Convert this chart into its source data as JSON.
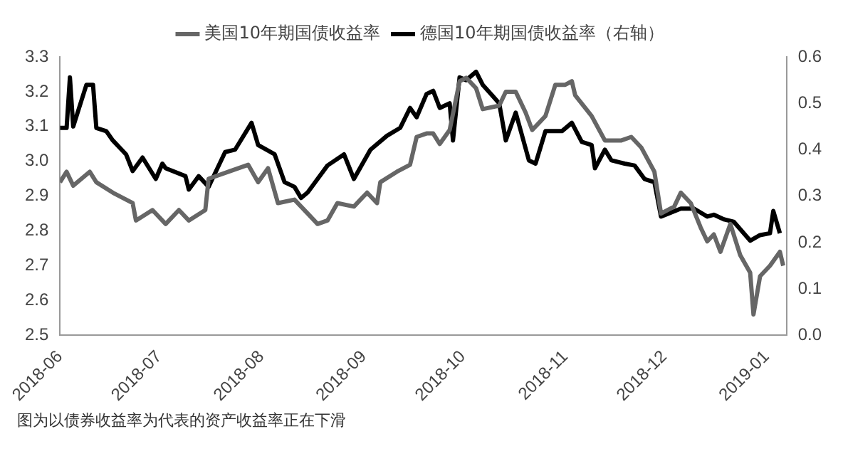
{
  "chart_data": {
    "type": "line",
    "legend": "top",
    "grid": false,
    "marker": "none",
    "line_style": "solid",
    "xlim": [
      "2018-06-01",
      "2019-01-07"
    ],
    "xticks": [
      {
        "value": "2018-06-01",
        "label": "2018-06"
      },
      {
        "value": "2018-07-01",
        "label": "2018-07"
      },
      {
        "value": "2018-08-01",
        "label": "2018-08"
      },
      {
        "value": "2018-09-01",
        "label": "2018-09"
      },
      {
        "value": "2018-10-01",
        "label": "2018-10"
      },
      {
        "value": "2018-11-01",
        "label": "2018-11"
      },
      {
        "value": "2018-12-01",
        "label": "2018-12"
      },
      {
        "value": "2019-01-01",
        "label": "2019-01"
      }
    ],
    "ylim": [
      2.5,
      3.3
    ],
    "yticks": [
      2.5,
      2.6,
      2.7,
      2.8,
      2.9,
      {
        "value": 3,
        "label": "3.0"
      },
      3.1,
      3.2,
      3.3
    ],
    "y2lim": [
      0,
      0.6
    ],
    "y2ticks": [
      {
        "value": 0,
        "label": "0.0"
      },
      0.1,
      0.2,
      0.3,
      0.4,
      0.5,
      0.6
    ],
    "series": [
      {
        "name": "美国10年期国债收益率",
        "color": "#666666",
        "x": [
          "2018-06-01",
          "2018-06-03",
          "2018-06-05",
          "2018-06-10",
          "2018-06-12",
          "2018-06-17",
          "2018-06-23",
          "2018-06-24",
          "2018-06-29",
          "2018-07-03",
          "2018-07-07",
          "2018-07-10",
          "2018-07-15",
          "2018-07-16",
          "2018-07-22",
          "2018-07-28",
          "2018-07-31",
          "2018-08-03",
          "2018-08-06",
          "2018-08-11",
          "2018-08-15",
          "2018-08-18",
          "2018-08-21",
          "2018-08-24",
          "2018-08-29",
          "2018-09-02",
          "2018-09-05",
          "2018-09-06",
          "2018-09-11",
          "2018-09-15",
          "2018-09-17",
          "2018-09-20",
          "2018-09-22",
          "2018-09-24",
          "2018-09-27",
          "2018-09-30",
          "2018-10-02",
          "2018-10-05",
          "2018-10-07",
          "2018-10-12",
          "2018-10-14",
          "2018-10-17",
          "2018-10-20",
          "2018-10-22",
          "2018-10-26",
          "2018-10-29",
          "2018-11-01",
          "2018-11-03",
          "2018-11-04",
          "2018-11-09",
          "2018-11-13",
          "2018-11-18",
          "2018-11-21",
          "2018-11-24",
          "2018-11-28",
          "2018-11-30",
          "2018-12-04",
          "2018-12-06",
          "2018-12-09",
          "2018-12-12",
          "2018-12-14",
          "2018-12-16",
          "2018-12-18",
          "2018-12-21",
          "2018-12-24",
          "2018-12-27",
          "2018-12-28",
          "2018-12-30",
          "2019-01-02",
          "2019-01-05",
          "2019-01-06"
        ],
        "values": [
          2.94,
          2.97,
          2.93,
          2.97,
          2.94,
          2.91,
          2.88,
          2.83,
          2.86,
          2.82,
          2.86,
          2.83,
          2.86,
          2.95,
          2.97,
          2.99,
          2.94,
          2.98,
          2.88,
          2.89,
          2.85,
          2.82,
          2.83,
          2.88,
          2.87,
          2.91,
          2.88,
          2.94,
          2.97,
          2.99,
          3.07,
          3.08,
          3.08,
          3.05,
          3.09,
          3.23,
          3.24,
          3.21,
          3.15,
          3.16,
          3.2,
          3.2,
          3.14,
          3.09,
          3.13,
          3.22,
          3.22,
          3.23,
          3.19,
          3.13,
          3.06,
          3.06,
          3.07,
          3.04,
          2.97,
          2.85,
          2.87,
          2.91,
          2.88,
          2.81,
          2.77,
          2.79,
          2.74,
          2.82,
          2.73,
          2.68,
          2.56,
          2.67,
          2.7,
          2.74,
          2.7
        ]
      },
      {
        "name": "德国10年期国债收益率（右轴）",
        "color": "#000000",
        "axis": "y2",
        "x": [
          "2018-06-01",
          "2018-06-03",
          "2018-06-04",
          "2018-06-05",
          "2018-06-09",
          "2018-06-11",
          "2018-06-12",
          "2018-06-15",
          "2018-06-17",
          "2018-06-21",
          "2018-06-23",
          "2018-06-26",
          "2018-06-30",
          "2018-07-02",
          "2018-07-03",
          "2018-07-09",
          "2018-07-10",
          "2018-07-13",
          "2018-07-16",
          "2018-07-21",
          "2018-07-24",
          "2018-07-29",
          "2018-07-31",
          "2018-08-05",
          "2018-08-08",
          "2018-08-11",
          "2018-08-13",
          "2018-08-15",
          "2018-08-21",
          "2018-08-26",
          "2018-08-29",
          "2018-09-03",
          "2018-09-08",
          "2018-09-12",
          "2018-09-15",
          "2018-09-17",
          "2018-09-20",
          "2018-09-22",
          "2018-09-24",
          "2018-09-27",
          "2018-09-28",
          "2018-09-30",
          "2018-10-02",
          "2018-10-05",
          "2018-10-07",
          "2018-10-10",
          "2018-10-12",
          "2018-10-14",
          "2018-10-17",
          "2018-10-21",
          "2018-10-23",
          "2018-10-26",
          "2018-10-31",
          "2018-11-03",
          "2018-11-06",
          "2018-11-09",
          "2018-11-10",
          "2018-11-13",
          "2018-11-15",
          "2018-11-19",
          "2018-11-22",
          "2018-11-25",
          "2018-11-28",
          "2018-11-30",
          "2018-12-06",
          "2018-12-10",
          "2018-12-14",
          "2018-12-16",
          "2018-12-19",
          "2018-12-22",
          "2018-12-27",
          "2018-12-30",
          "2019-01-02",
          "2019-01-03",
          "2019-01-05"
        ],
        "values": [
          0.447,
          0.447,
          0.556,
          0.45,
          0.54,
          0.54,
          0.447,
          0.44,
          0.42,
          0.39,
          0.354,
          0.383,
          0.337,
          0.37,
          0.36,
          0.343,
          0.314,
          0.343,
          0.32,
          0.395,
          0.4,
          0.458,
          0.41,
          0.39,
          0.33,
          0.32,
          0.296,
          0.308,
          0.366,
          0.39,
          0.337,
          0.4,
          0.43,
          0.447,
          0.49,
          0.47,
          0.52,
          0.527,
          0.49,
          0.5,
          0.42,
          0.556,
          0.55,
          0.568,
          0.54,
          0.516,
          0.5,
          0.42,
          0.48,
          0.377,
          0.37,
          0.44,
          0.44,
          0.458,
          0.417,
          0.41,
          0.36,
          0.4,
          0.377,
          0.37,
          0.366,
          0.337,
          0.33,
          0.256,
          0.273,
          0.273,
          0.256,
          0.26,
          0.25,
          0.245,
          0.204,
          0.216,
          0.22,
          0.268,
          0.22
        ]
      }
    ],
    "annotations": [
      "图为以债券收益率为代表的资产收益率正在下滑"
    ]
  }
}
